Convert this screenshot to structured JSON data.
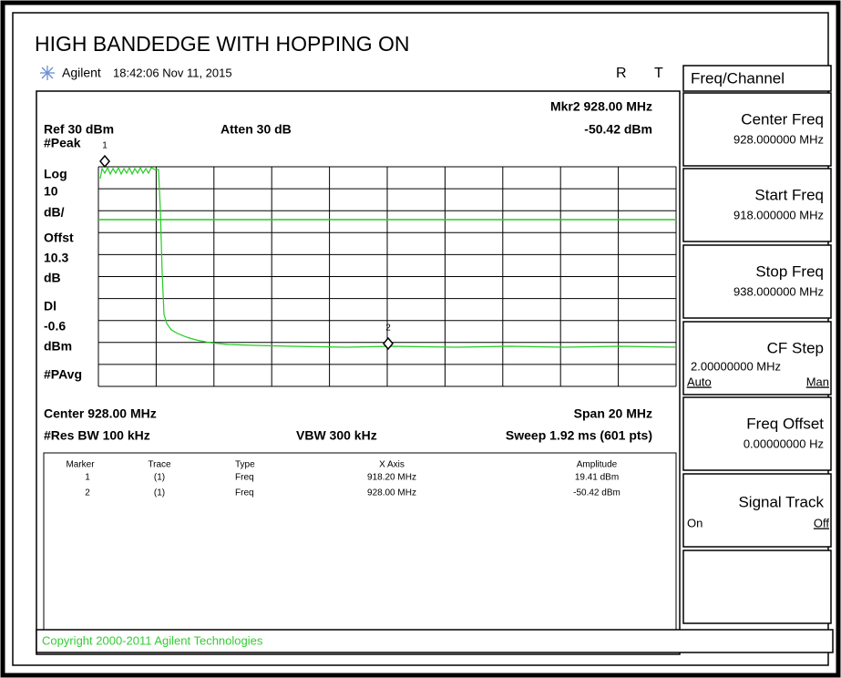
{
  "title": "HIGH BANDEDGE WITH HOPPING ON",
  "header": {
    "brand": "Agilent",
    "timestamp": "18:42:06 Nov 11, 2015",
    "flag_r": "R",
    "flag_t": "T"
  },
  "screen": {
    "marker_readout": {
      "freq": "Mkr2 928.00 MHz",
      "amplitude": "-50.42 dBm"
    },
    "ref_level": "Ref 30 dBm",
    "attenuation": "Atten 30 dB",
    "side_labels": [
      "#Peak",
      "Log",
      "10",
      "dB/",
      "Offst",
      "10.3",
      "dB",
      "Dl",
      "-0.6",
      "dBm",
      "#PAvg"
    ],
    "marker_ids": [
      "1",
      "2"
    ],
    "center": "Center 928.00 MHz",
    "span": "Span 20 MHz",
    "res_bw": "#Res BW 100 kHz",
    "vbw": "VBW 300 kHz",
    "sweep": "Sweep 1.92 ms (601 pts)",
    "table": {
      "columns": [
        "Marker",
        "Trace",
        "Type",
        "X Axis",
        "Amplitude"
      ],
      "rows": [
        [
          "1",
          "(1)",
          "Freq",
          "918.20 MHz",
          "19.41 dBm"
        ],
        [
          "2",
          "(1)",
          "Freq",
          "928.00 MHz",
          "-50.42 dBm"
        ]
      ]
    }
  },
  "copyright": "Copyright 2000-2011 Agilent Technologies",
  "softkeys": {
    "menu": "Freq/Channel",
    "keys": [
      {
        "label": "Center Freq",
        "value": "928.000000 MHz"
      },
      {
        "label": "Start Freq",
        "value": "918.000000 MHz"
      },
      {
        "label": "Stop Freq",
        "value": "938.000000 MHz"
      },
      {
        "label": "CF Step",
        "value": "2.00000000 MHz",
        "left": "Auto",
        "right": "Man"
      },
      {
        "label": "Freq Offset",
        "value": "0.00000000  Hz"
      },
      {
        "label": "Signal Track",
        "left": "On",
        "right": "Off"
      }
    ]
  }
}
